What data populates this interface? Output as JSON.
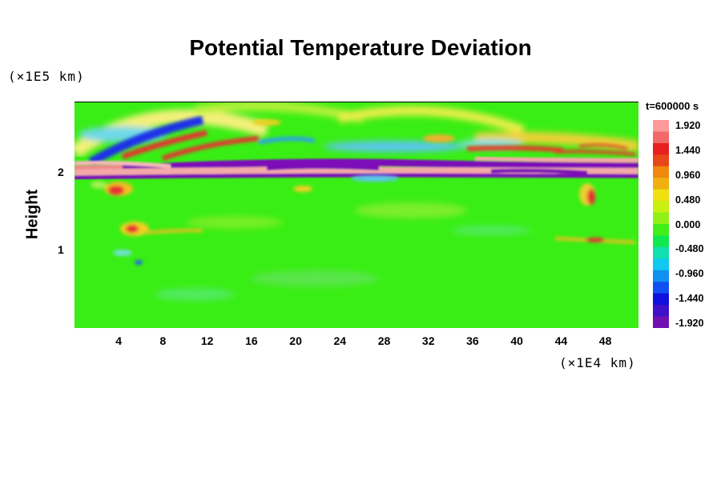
{
  "chart_data": {
    "type": "heatmap",
    "title": "Potential Temperature Deviation",
    "ylabel": "Height",
    "y_unit_label": "(×1E5 km)",
    "x_unit_label": "(×1E4 km)",
    "time_label": "t=600000 s",
    "xlim": [
      0,
      51
    ],
    "ylim": [
      0,
      2.9
    ],
    "x_ticks": [
      "4",
      "8",
      "12",
      "16",
      "20",
      "24",
      "28",
      "32",
      "36",
      "40",
      "44",
      "48"
    ],
    "y_ticks": [
      "1",
      "2"
    ],
    "colorbar": {
      "labels": [
        "1.920",
        "1.440",
        "0.960",
        "0.480",
        "0.000",
        "-0.480",
        "-0.960",
        "-1.440",
        "-1.920"
      ],
      "range": [
        -1.92,
        1.92
      ]
    },
    "background_value": 0.0
  }
}
